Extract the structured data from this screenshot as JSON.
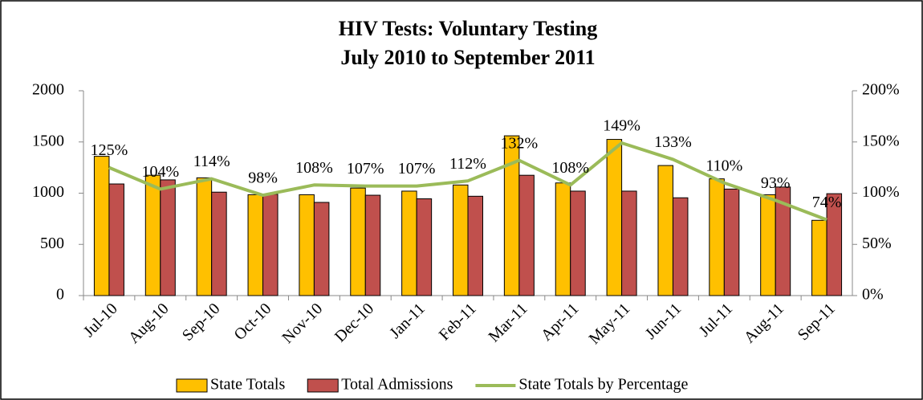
{
  "chart_data": {
    "type": "bar_line",
    "title": [
      "HIV Tests: Voluntary Testing",
      "July 2010 to September 2011"
    ],
    "categories": [
      "Jul-10",
      "Aug-10",
      "Sep-10",
      "Oct-10",
      "Nov-10",
      "Dec-10",
      "Jan-11",
      "Feb-11",
      "Mar-11",
      "Apr-11",
      "May-11",
      "Jun-11",
      "Jul-11",
      "Aug-11",
      "Sep-11"
    ],
    "series": [
      {
        "name": "State Totals",
        "type": "bar",
        "color": "#FFC000",
        "values": [
          1360,
          1175,
          1150,
          985,
          985,
          1050,
          1020,
          1080,
          1560,
          1100,
          1525,
          1270,
          1140,
          985,
          735
        ]
      },
      {
        "name": "Total Admissions",
        "type": "bar",
        "color": "#C0504D",
        "values": [
          1090,
          1130,
          1010,
          990,
          910,
          980,
          945,
          970,
          1175,
          1020,
          1020,
          955,
          1040,
          1060,
          995
        ]
      },
      {
        "name": "State Totals by Percentage",
        "type": "line",
        "axis": "y2",
        "color": "#9BBB59",
        "values": [
          125,
          104,
          114,
          98,
          108,
          107,
          107,
          112,
          132,
          108,
          149,
          133,
          110,
          93,
          74
        ],
        "value_labels": [
          "125%",
          "104%",
          "114%",
          "98%",
          "108%",
          "107%",
          "107%",
          "112%",
          "132%",
          "108%",
          "149%",
          "133%",
          "110%",
          "93%",
          "74%"
        ]
      }
    ],
    "ylim": [
      0,
      2000
    ],
    "yticks": [
      0,
      500,
      1000,
      1500,
      2000
    ],
    "y2lim": [
      0,
      200
    ],
    "y2ticks": [
      {
        "value": 0,
        "label": "0%"
      },
      {
        "value": 50,
        "label": "50%"
      },
      {
        "value": 100,
        "label": "100%"
      },
      {
        "value": 150,
        "label": "150%"
      },
      {
        "value": 200,
        "label": "200%"
      }
    ],
    "legend": "bottom"
  }
}
